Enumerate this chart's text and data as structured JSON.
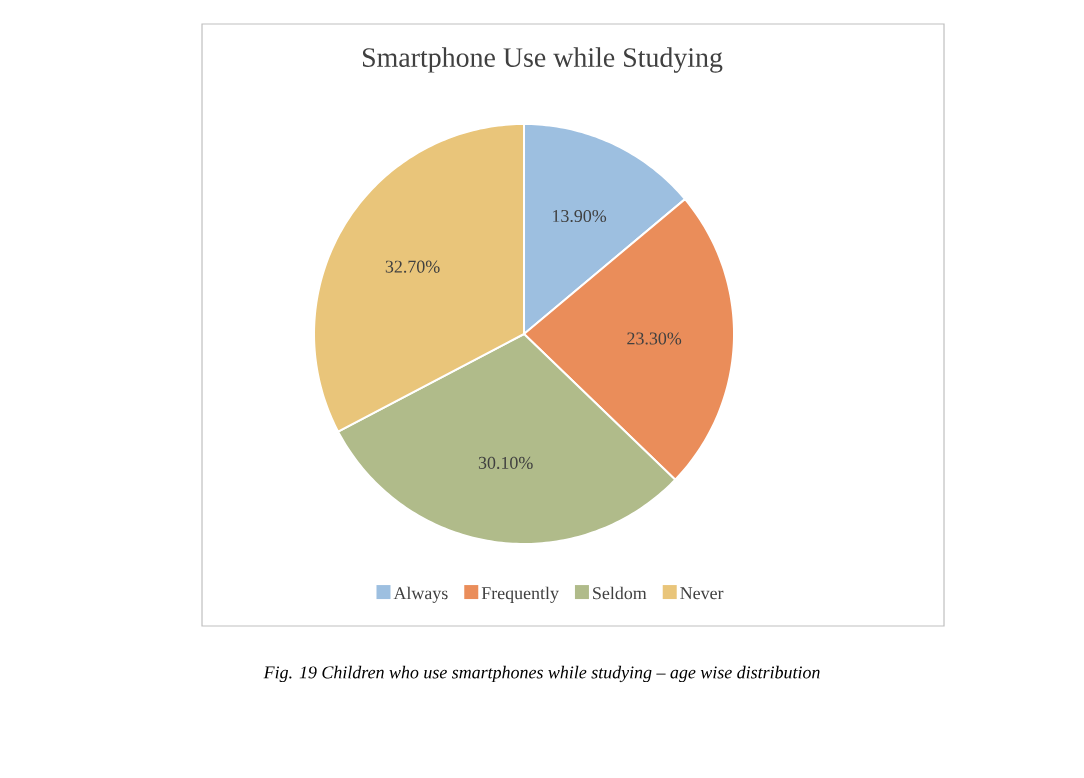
{
  "chart_data": {
    "type": "pie",
    "title": "Smartphone Use while Studying",
    "categories": [
      "Always",
      "Frequently",
      "Seldom",
      "Never"
    ],
    "values": [
      13.9,
      23.3,
      30.1,
      32.7
    ],
    "value_labels": [
      "13.90%",
      "23.30%",
      "30.10%",
      "32.70%"
    ],
    "colors": [
      "#9dbfe0",
      "#ea8d5a",
      "#b0bb8a",
      "#e9c57a"
    ],
    "legend": "bottom",
    "annotations": [
      "Fig. 19 Children who use smartphones while studying – age wise distribution"
    ]
  }
}
